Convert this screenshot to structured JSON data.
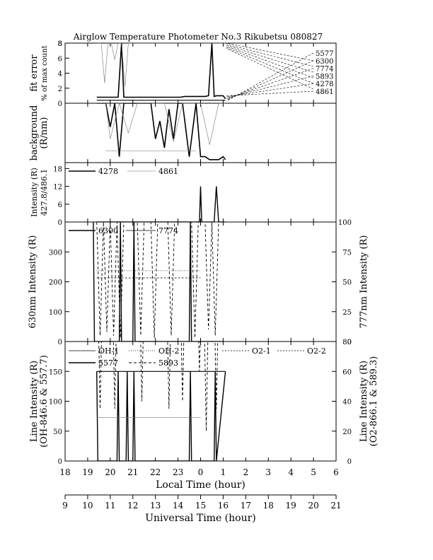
{
  "title": "Airglow Temperature Photometer No.3  Rikubetsu   080827",
  "chart_data": [
    {
      "type": "line",
      "panel": "fit_error",
      "ylabel": [
        "fit error",
        "% of max count"
      ],
      "ylim": [
        0,
        8
      ],
      "yticks": [
        0,
        2,
        4,
        6,
        8
      ],
      "legend": [
        "5577",
        "6300",
        "7774",
        "5893",
        "4278",
        "4861"
      ],
      "series": [
        {
          "name": "thick",
          "x": [
            19.4,
            19.7,
            19.9,
            20.0,
            20.2,
            20.35,
            20.5,
            20.6,
            20.75,
            21.0,
            21.3,
            21.6,
            22.0,
            22.3,
            22.6,
            22.9,
            23.1,
            23.3,
            23.5,
            23.75,
            24.0,
            24.2,
            24.35,
            24.5,
            24.6,
            24.7,
            24.8,
            25.0,
            25.1
          ],
          "y": [
            0.8,
            0.8,
            0.8,
            0.8,
            0.8,
            0.8,
            8,
            0.8,
            0.8,
            0.8,
            0.8,
            0.8,
            0.8,
            0.8,
            0.8,
            0.8,
            0.8,
            0.9,
            0.9,
            0.9,
            0.9,
            0.9,
            1.0,
            8,
            0.9,
            1.0,
            1.0,
            1.0,
            0.6
          ]
        },
        {
          "name": "thin-gray",
          "x": [
            19.4,
            19.6,
            19.75,
            19.9,
            20.05,
            20.2,
            20.35,
            20.5,
            20.65,
            20.8,
            21.0,
            21.2,
            21.4,
            21.6,
            21.8,
            22.0,
            22.2,
            22.4,
            22.6,
            22.8,
            23.0,
            23.2,
            23.4,
            23.6,
            23.8,
            24.0,
            24.2,
            24.4,
            24.6,
            24.8,
            25.0
          ],
          "y": [
            8,
            8,
            2.7,
            8,
            8,
            5.8,
            8,
            8,
            2.2,
            8,
            8,
            8,
            8,
            8,
            8,
            8,
            8,
            8,
            8,
            8,
            8,
            8,
            8,
            8,
            8,
            8,
            8,
            8,
            8,
            8,
            8
          ]
        },
        {
          "name": "flat",
          "x": [
            19.4,
            25.1
          ],
          "y": [
            0.4,
            0.4
          ]
        }
      ]
    },
    {
      "type": "line",
      "panel": "background",
      "ylabel": [
        "background",
        "(R/nm)"
      ],
      "ylim": [
        0,
        1
      ],
      "series": [
        {
          "name": "thick",
          "x": [
            19.4,
            19.8,
            20.0,
            20.2,
            20.4,
            20.6,
            20.8,
            21.0,
            21.3,
            21.6,
            21.8,
            22.0,
            22.2,
            22.4,
            22.6,
            22.8,
            23.0,
            23.2,
            23.5,
            23.8,
            24.0,
            24.2,
            24.4,
            24.6,
            24.8,
            25.0,
            25.1
          ],
          "y": [
            1.0,
            1.0,
            0.6,
            1.0,
            0.1,
            1.0,
            1.0,
            1.0,
            1.0,
            1.0,
            1.0,
            0.4,
            0.7,
            0.25,
            0.9,
            0.4,
            1.0,
            1.0,
            0.1,
            1.0,
            0.1,
            0.1,
            0.05,
            0.05,
            0.05,
            0.1,
            0.05
          ]
        },
        {
          "name": "thin-gray",
          "x": [
            19.4,
            19.8,
            20.0,
            20.4,
            20.8,
            21.2,
            21.6,
            22.0,
            22.4,
            22.8,
            23.2,
            23.6,
            24.0,
            24.4,
            24.8,
            25.1
          ],
          "y": [
            1.0,
            1.0,
            0.4,
            1.0,
            0.5,
            1.0,
            1.0,
            1.0,
            1.0,
            0.35,
            1.0,
            1.0,
            1.0,
            0.3,
            1.0,
            1.0
          ]
        },
        {
          "name": "level",
          "x": [
            19.8,
            23.8
          ],
          "y": [
            0.2,
            0.2
          ]
        }
      ]
    },
    {
      "type": "line",
      "panel": "intensity_427_486",
      "ylabel": [
        "Intensity (R)",
        "427.8/486.1"
      ],
      "ylim": [
        0,
        20
      ],
      "yticks": [
        0,
        6,
        12,
        18
      ],
      "legend": [
        "4278",
        "4861"
      ],
      "series": [
        {
          "name": "4278",
          "x": [
            19.4,
            23.95,
            24.0,
            24.05,
            24.6,
            24.7,
            24.8,
            25.1
          ],
          "y": [
            0,
            0,
            12,
            0,
            0,
            12,
            0,
            0
          ]
        },
        {
          "name": "4861",
          "x": [
            19.4,
            25.1
          ],
          "y": [
            0,
            0
          ]
        }
      ]
    },
    {
      "type": "line",
      "panel": "630_777",
      "ylabel": "630nm Intensity (R)",
      "y2label": "777nm Intensity (R)",
      "ylim": [
        0,
        400
      ],
      "yticks": [
        0,
        100,
        200,
        300
      ],
      "y2lim": [
        0,
        100
      ],
      "y2ticks": [
        0,
        25,
        50,
        75,
        100
      ],
      "legend": [
        "6300",
        "7774"
      ],
      "series": [
        {
          "name": "6300",
          "x": [
            19.25,
            19.3,
            19.35,
            20.4,
            20.45,
            20.5,
            21.0,
            21.05,
            21.1,
            23.5,
            23.55,
            23.6,
            24.9,
            25.0
          ],
          "y": [
            400,
            0,
            0,
            0,
            400,
            0,
            0,
            400,
            0,
            0,
            400,
            0,
            0,
            0
          ]
        },
        {
          "name": "7774",
          "x": [
            19.4,
            19.55,
            19.7,
            19.85,
            20.0,
            20.15,
            20.3,
            20.45,
            20.6,
            20.75,
            20.9,
            21.05,
            21.2,
            21.35,
            21.5,
            21.65,
            21.8,
            21.95,
            22.1,
            22.25,
            22.4,
            22.55,
            22.7,
            22.85,
            23.0,
            23.15,
            23.3,
            23.45,
            23.6,
            23.75,
            23.9,
            24.05,
            24.2,
            24.35,
            24.5,
            24.65,
            24.8,
            24.95,
            25.05
          ],
          "y": [
            100,
            5,
            100,
            8,
            100,
            5,
            100,
            3,
            100,
            100,
            100,
            100,
            100,
            5,
            100,
            100,
            100,
            3,
            100,
            100,
            100,
            100,
            5,
            100,
            100,
            100,
            100,
            100,
            100,
            3,
            100,
            100,
            100,
            10,
            100,
            5,
            100,
            100,
            100
          ]
        },
        {
          "name": "dotted",
          "x": [
            19.4,
            24.0
          ],
          "y": [
            237,
            237
          ]
        },
        {
          "name": "dashed",
          "x": [
            19.4,
            24.0
          ],
          "y": [
            213,
            213
          ]
        }
      ]
    },
    {
      "type": "line",
      "panel": "line_intensity",
      "ylabel": [
        "Line Intensity (R)",
        "(OH-846.6 & 557.7)"
      ],
      "y2label": [
        "Line Intensity (R)",
        "(O2-866.1 & 589.3)"
      ],
      "ylim": [
        0,
        200
      ],
      "yticks": [
        0,
        50,
        100,
        150
      ],
      "y2lim": [
        0,
        80
      ],
      "y2ticks": [
        0,
        20,
        40,
        60,
        80
      ],
      "legend": [
        "OH-1",
        "OH-2",
        "O2-1",
        "O2-2",
        "5577",
        "5893"
      ],
      "series": [
        {
          "name": "5577",
          "x": [
            19.4,
            19.45,
            19.5,
            20.3,
            20.35,
            20.4,
            20.7,
            20.75,
            20.8,
            21.0,
            21.05,
            21.1,
            23.5,
            23.55,
            23.6,
            24.6,
            24.65,
            24.7,
            25.1
          ],
          "y": [
            150,
            0,
            0,
            0,
            150,
            0,
            0,
            150,
            0,
            0,
            150,
            0,
            0,
            150,
            0,
            0,
            150,
            0,
            150
          ]
        },
        {
          "name": "5893",
          "x": [
            19.4,
            19.55,
            19.7,
            19.9,
            20.05,
            20.2,
            20.35,
            20.5,
            20.65,
            20.8,
            20.95,
            21.1,
            21.25,
            21.4,
            21.55,
            21.7,
            21.85,
            22.0,
            22.15,
            22.3,
            22.45,
            22.6,
            22.75,
            22.9,
            23.05,
            23.2,
            23.35,
            23.5,
            23.65,
            23.8,
            23.95,
            24.1,
            24.25,
            24.4,
            24.55,
            24.7,
            24.85,
            25.0
          ],
          "y": [
            150,
            35,
            150,
            90,
            150,
            35,
            150,
            150,
            150,
            150,
            150,
            150,
            150,
            40,
            150,
            150,
            150,
            150,
            150,
            150,
            150,
            35,
            150,
            150,
            150,
            40,
            150,
            150,
            150,
            150,
            60,
            150,
            20,
            150,
            150,
            35,
            150,
            150
          ]
        },
        {
          "name": "flat-150",
          "x": [
            19.4,
            25.1
          ],
          "y": [
            150,
            150
          ]
        },
        {
          "name": "flat-73",
          "x": [
            19.4,
            24.0
          ],
          "y": [
            73,
            73
          ]
        }
      ]
    },
    {
      "type": "axis",
      "panel": "time_axes",
      "xlabel": "Local Time (hour)",
      "xticks": [
        "18",
        "19",
        "20",
        "21",
        "22",
        "23",
        "0",
        "1",
        "2",
        "3",
        "4",
        "5",
        "6"
      ],
      "x2label": "Universal Time (hour)",
      "x2ticks": [
        "9",
        "10",
        "11",
        "12",
        "13",
        "14",
        "15",
        "16",
        "17",
        "18",
        "19",
        "20",
        "21"
      ],
      "xlim": [
        18,
        30
      ]
    }
  ]
}
